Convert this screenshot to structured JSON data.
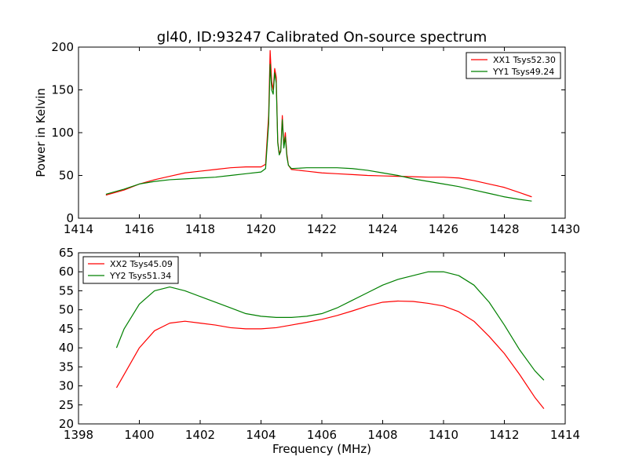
{
  "chart_data": [
    {
      "type": "line",
      "title": "gl40, ID:93247 Calibrated On-source spectrum",
      "xlabel": "",
      "ylabel": "Power in Kelvin",
      "xlim": [
        1414,
        1430
      ],
      "ylim": [
        0,
        200
      ],
      "xticks": [
        1414,
        1416,
        1418,
        1420,
        1422,
        1424,
        1426,
        1428,
        1430
      ],
      "yticks": [
        0,
        50,
        100,
        150,
        200
      ],
      "legend_position": "top-right",
      "series": [
        {
          "name": "XX1 Tsys52.30",
          "color": "#ff0000",
          "x": [
            1414.9,
            1415.5,
            1416,
            1416.5,
            1417,
            1417.5,
            1418,
            1418.5,
            1419,
            1419.5,
            1420,
            1420.15,
            1420.25,
            1420.3,
            1420.35,
            1420.4,
            1420.45,
            1420.5,
            1420.55,
            1420.6,
            1420.65,
            1420.7,
            1420.75,
            1420.8,
            1420.85,
            1420.9,
            1421,
            1421.5,
            1422,
            1422.5,
            1423,
            1423.5,
            1424,
            1424.5,
            1425,
            1425.5,
            1426,
            1426.5,
            1427,
            1427.5,
            1428,
            1428.5,
            1428.9
          ],
          "y": [
            27,
            33,
            40,
            45,
            49,
            53,
            55,
            57,
            59,
            60,
            60,
            63,
            120,
            196,
            160,
            150,
            175,
            165,
            90,
            75,
            80,
            120,
            85,
            100,
            75,
            62,
            57,
            55,
            53,
            52,
            51,
            50,
            49.5,
            49,
            48.5,
            48,
            48,
            47,
            44,
            40,
            36,
            30,
            25
          ]
        },
        {
          "name": "YY1 Tsys49.24",
          "color": "#008000",
          "x": [
            1414.9,
            1415.5,
            1416,
            1416.5,
            1417,
            1417.5,
            1418,
            1418.5,
            1419,
            1419.5,
            1420,
            1420.15,
            1420.25,
            1420.3,
            1420.35,
            1420.4,
            1420.45,
            1420.5,
            1420.55,
            1420.6,
            1420.65,
            1420.7,
            1420.75,
            1420.8,
            1420.85,
            1420.9,
            1421,
            1421.5,
            1422,
            1422.5,
            1423,
            1423.5,
            1424,
            1424.5,
            1425,
            1425.5,
            1426,
            1426.5,
            1427,
            1427.5,
            1428,
            1428.5,
            1428.9
          ],
          "y": [
            28,
            34,
            40,
            43,
            45,
            46,
            47,
            48,
            50,
            52,
            54,
            58,
            110,
            180,
            150,
            145,
            170,
            158,
            88,
            74,
            78,
            115,
            82,
            95,
            72,
            62,
            58,
            59,
            59,
            59,
            58,
            56,
            53,
            50,
            46,
            43,
            40,
            37,
            33,
            29,
            25,
            22,
            20
          ]
        }
      ]
    },
    {
      "type": "line",
      "title": "",
      "xlabel": "Frequency (MHz)",
      "ylabel": "",
      "xlim": [
        1398,
        1414
      ],
      "ylim": [
        20,
        65
      ],
      "xticks": [
        1398,
        1400,
        1402,
        1404,
        1406,
        1408,
        1410,
        1412,
        1414
      ],
      "yticks": [
        20,
        25,
        30,
        35,
        40,
        45,
        50,
        55,
        60,
        65
      ],
      "legend_position": "top-left",
      "series": [
        {
          "name": "XX2 Tsys45.09",
          "color": "#ff0000",
          "x": [
            1399.25,
            1399.5,
            1400,
            1400.5,
            1401,
            1401.5,
            1402,
            1402.5,
            1403,
            1403.5,
            1404,
            1404.5,
            1405,
            1405.5,
            1406,
            1406.5,
            1407,
            1407.5,
            1408,
            1408.5,
            1409,
            1409.5,
            1410,
            1410.5,
            1411,
            1411.5,
            1412,
            1412.5,
            1413,
            1413.3
          ],
          "y": [
            29.5,
            33,
            40,
            44.5,
            46.5,
            47,
            46.5,
            46,
            45.3,
            45,
            45,
            45.3,
            46,
            46.7,
            47.5,
            48.5,
            49.7,
            51,
            52,
            52.3,
            52.2,
            51.7,
            51,
            49.5,
            47,
            43,
            38.5,
            33,
            27,
            24
          ]
        },
        {
          "name": "YY2 Tsys51.34",
          "color": "#008000",
          "x": [
            1399.25,
            1399.5,
            1400,
            1400.5,
            1401,
            1401.5,
            1402,
            1402.5,
            1403,
            1403.5,
            1404,
            1404.5,
            1405,
            1405.5,
            1406,
            1406.5,
            1407,
            1407.5,
            1408,
            1408.5,
            1409,
            1409.5,
            1410,
            1410.5,
            1411,
            1411.5,
            1412,
            1412.5,
            1413,
            1413.3
          ],
          "y": [
            40,
            45,
            51.5,
            55,
            56,
            55,
            53.5,
            52,
            50.5,
            49,
            48.3,
            48,
            48,
            48.3,
            49,
            50.5,
            52.5,
            54.5,
            56.5,
            58,
            59,
            60,
            60,
            59,
            56.5,
            52,
            46,
            39.5,
            34,
            31.5
          ]
        }
      ]
    }
  ]
}
